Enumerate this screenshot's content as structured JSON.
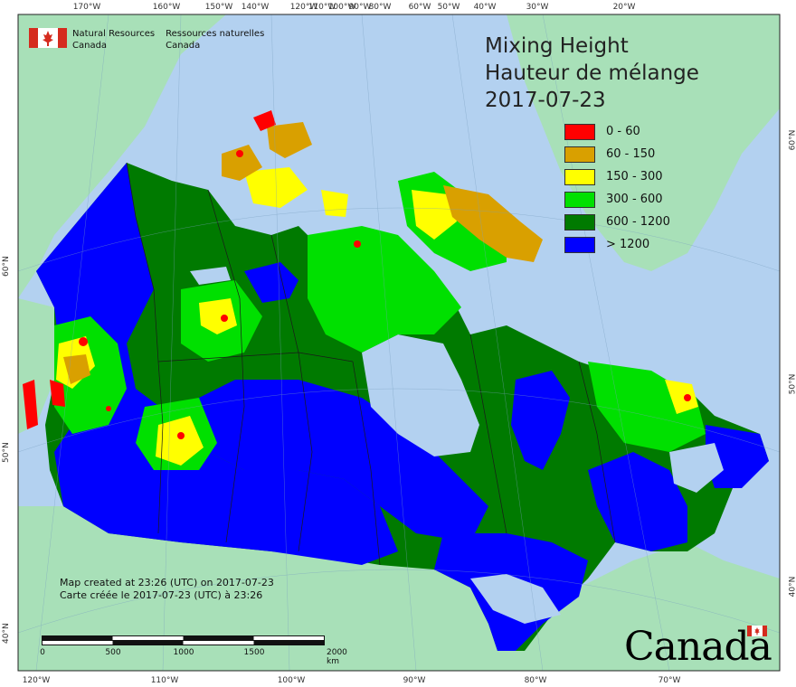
{
  "title": {
    "line1": "Mixing Height",
    "line2": "Hauteur de mélange",
    "date": "2017-07-23"
  },
  "legend": [
    {
      "label": "0 - 60",
      "color": "#ff0000"
    },
    {
      "label": "60 - 150",
      "color": "#d9a000"
    },
    {
      "label": "150 - 300",
      "color": "#ffff00"
    },
    {
      "label": "300 - 600",
      "color": "#00e000"
    },
    {
      "label": "600 - 1200",
      "color": "#007a00"
    },
    {
      "label": "> 1200",
      "color": "#0000ff"
    }
  ],
  "agency": {
    "en_line1": "Natural Resources",
    "en_line2": "Canada",
    "fr_line1": "Ressources naturelles",
    "fr_line2": "Canada"
  },
  "created": {
    "en": "Map created at 23:26 (UTC) on 2017-07-23",
    "fr": "Carte créée le 2017-07-23 (UTC) à 23:26"
  },
  "scale": {
    "labels": [
      "0",
      "500",
      "1000",
      "1500",
      "2000 km"
    ]
  },
  "wordmark": "Canada",
  "graticule": {
    "top": [
      "170°W",
      "160°W",
      "150°W",
      "140°W",
      "120°W",
      "110°W",
      "100°W",
      "90°W",
      "80°W",
      "60°W",
      "50°W",
      "40°W",
      "30°W",
      "20°W"
    ],
    "bottom": [
      "120°W",
      "110°W",
      "100°W",
      "90°W",
      "80°W",
      "70°W"
    ],
    "left": [
      "60°N",
      "50°N",
      "40°N"
    ],
    "right": [
      "60°N",
      "50°N",
      "40°N"
    ]
  },
  "colors": {
    "ocean": "#b3d1f0",
    "land": "#a8e0b8",
    "frame": "#222222"
  }
}
